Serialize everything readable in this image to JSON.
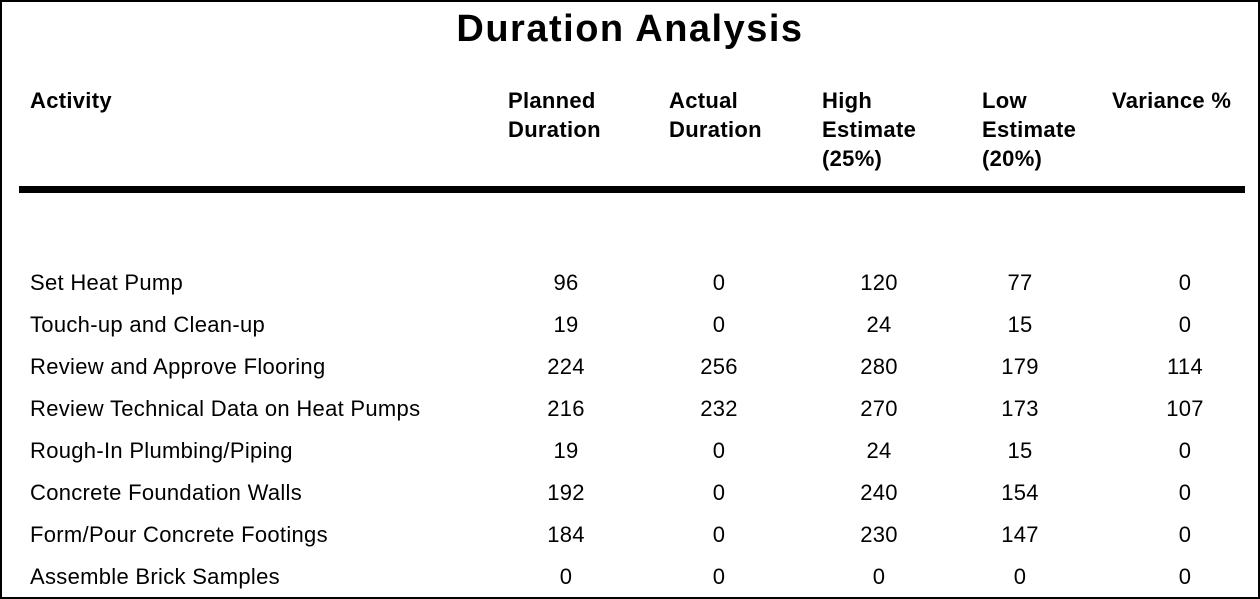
{
  "title": "Duration Analysis",
  "table": {
    "columns": [
      {
        "label": "Activity"
      },
      {
        "label": "Planned\nDuration"
      },
      {
        "label": "Actual\nDuration"
      },
      {
        "label": "High\nEstimate\n(25%)"
      },
      {
        "label": "Low\nEstimate\n(20%)"
      },
      {
        "label": "Variance %"
      }
    ],
    "rows": [
      {
        "activity": "Set Heat Pump",
        "planned": "96",
        "actual": "0",
        "high": "120",
        "low": "77",
        "variance": "0"
      },
      {
        "activity": "Touch-up and Clean-up",
        "planned": "19",
        "actual": "0",
        "high": "24",
        "low": "15",
        "variance": "0"
      },
      {
        "activity": "Review and Approve Flooring",
        "planned": "224",
        "actual": "256",
        "high": "280",
        "low": "179",
        "variance": "114"
      },
      {
        "activity": "Review Technical Data on Heat Pumps",
        "planned": "216",
        "actual": "232",
        "high": "270",
        "low": "173",
        "variance": "107"
      },
      {
        "activity": "Rough-In Plumbing/Piping",
        "planned": "19",
        "actual": "0",
        "high": "24",
        "low": "15",
        "variance": "0"
      },
      {
        "activity": "Concrete Foundation Walls",
        "planned": "192",
        "actual": "0",
        "high": "240",
        "low": "154",
        "variance": "0"
      },
      {
        "activity": "Form/Pour Concrete Footings",
        "planned": "184",
        "actual": "0",
        "high": "230",
        "low": "147",
        "variance": "0"
      },
      {
        "activity": "Assemble Brick Samples",
        "planned": "0",
        "actual": "0",
        "high": "0",
        "low": "0",
        "variance": "0"
      }
    ]
  },
  "chart_data": {
    "type": "table",
    "title": "Duration Analysis",
    "columns": [
      "Activity",
      "Planned Duration",
      "Actual Duration",
      "High Estimate (25%)",
      "Low Estimate (20%)",
      "Variance %"
    ],
    "rows": [
      [
        "Set Heat Pump",
        96,
        0,
        120,
        77,
        0
      ],
      [
        "Touch-up and Clean-up",
        19,
        0,
        24,
        15,
        0
      ],
      [
        "Review and Approve Flooring",
        224,
        256,
        280,
        179,
        114
      ],
      [
        "Review Technical Data on Heat Pumps",
        216,
        232,
        270,
        173,
        107
      ],
      [
        "Rough-In Plumbing/Piping",
        19,
        0,
        24,
        15,
        0
      ],
      [
        "Concrete Foundation Walls",
        192,
        0,
        240,
        154,
        0
      ],
      [
        "Form/Pour Concrete Footings",
        184,
        0,
        230,
        147,
        0
      ],
      [
        "Assemble Brick Samples",
        0,
        0,
        0,
        0,
        0
      ]
    ],
    "colors": {
      "text": "#000000",
      "background": "#ffffff",
      "border": "#000000"
    }
  }
}
